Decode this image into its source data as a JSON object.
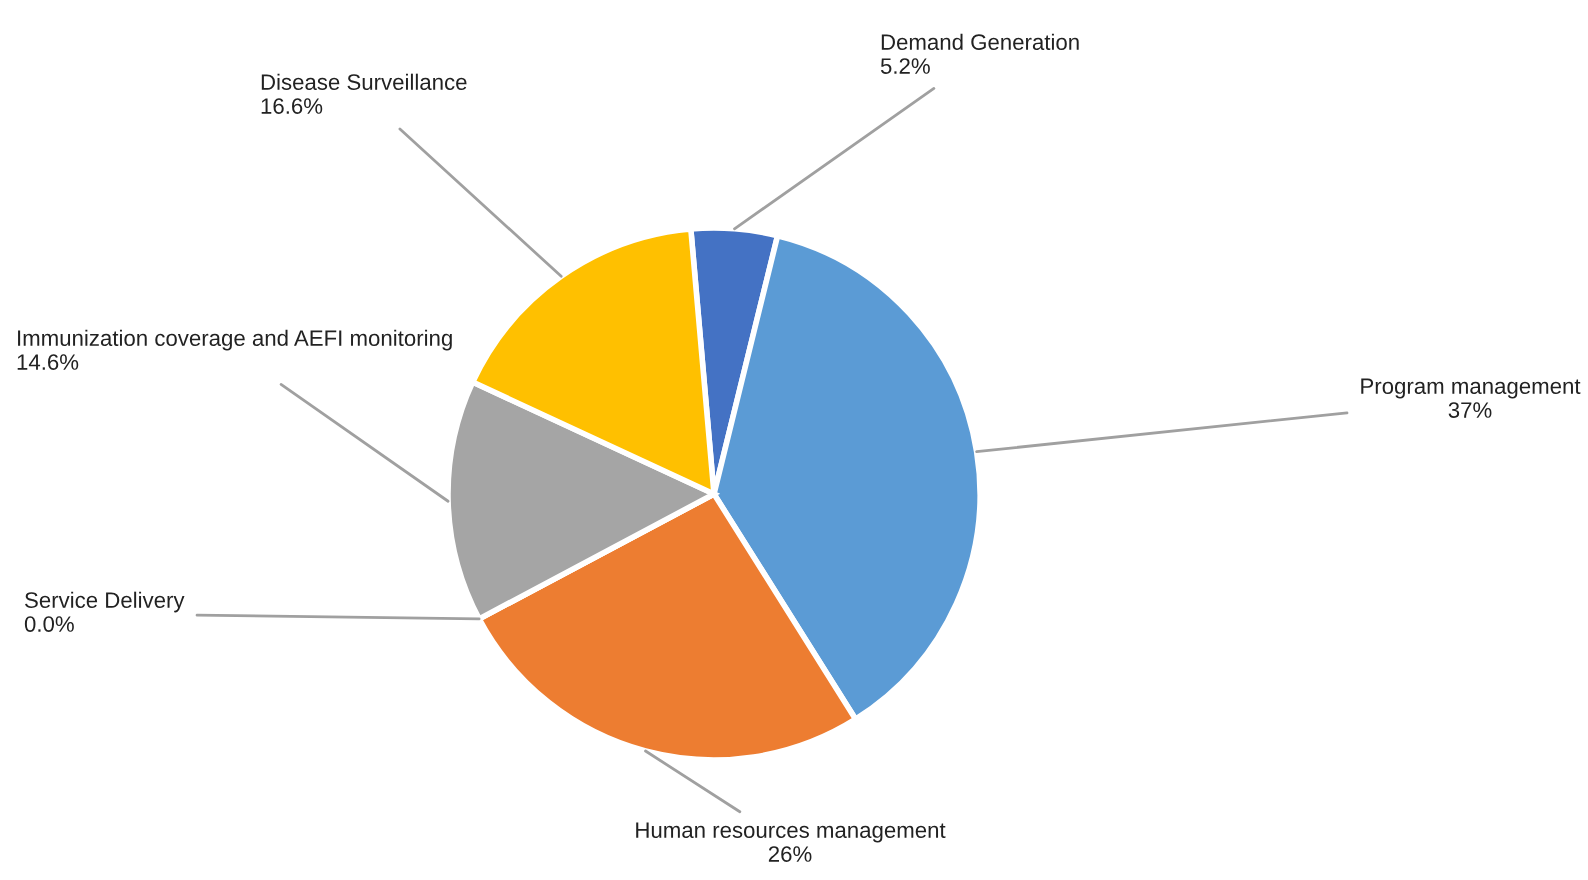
{
  "chart_data": {
    "type": "pie",
    "categories": [
      "Demand Generation",
      "Program management",
      "Human resources management",
      "Service Delivery",
      "Immunization coverage and AEFI monitoring",
      "Disease Surveillance"
    ],
    "values": [
      5.2,
      37,
      26,
      0.0,
      14.6,
      16.6
    ],
    "value_labels": [
      "5.2%",
      "37%",
      "26%",
      "0.0%",
      "14.6%",
      "16.6%"
    ],
    "colors": [
      "#4472c4",
      "#5b9bd5",
      "#ed7d31",
      "#70ad47",
      "#a5a5a5",
      "#ffc000"
    ],
    "legend": false
  }
}
